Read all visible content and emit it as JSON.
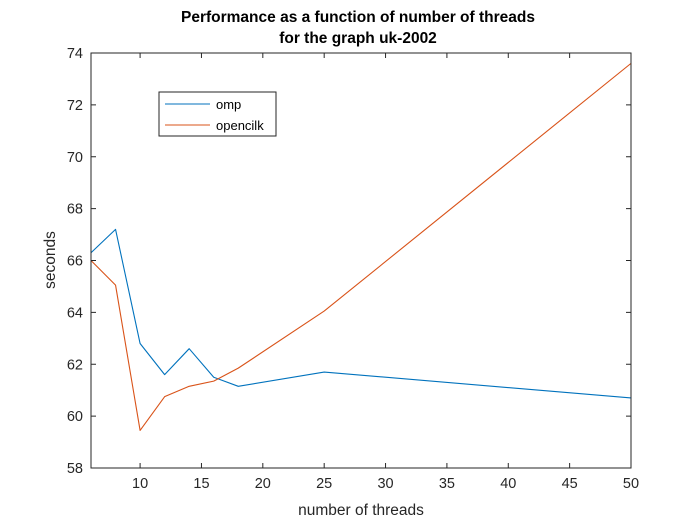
{
  "chart_data": {
    "type": "line",
    "title": [
      "Performance as a function of number of threads",
      "for the graph uk-2002"
    ],
    "xlabel": "number of threads",
    "ylabel": "seconds",
    "xlim": [
      6,
      50
    ],
    "ylim": [
      58,
      74
    ],
    "xticks": [
      10,
      15,
      20,
      25,
      30,
      35,
      40,
      45,
      50
    ],
    "yticks": [
      58,
      60,
      62,
      64,
      66,
      68,
      70,
      72,
      74
    ],
    "grid": false,
    "legend_position": "top-left",
    "series": [
      {
        "name": "omp",
        "color": "#0072BD",
        "x": [
          6,
          8,
          10,
          12,
          14,
          16,
          18,
          25,
          50
        ],
        "y": [
          66.3,
          67.2,
          62.8,
          61.6,
          62.6,
          61.5,
          61.15,
          61.7,
          60.7
        ]
      },
      {
        "name": "opencilk",
        "color": "#D95319",
        "x": [
          6,
          8,
          10,
          12,
          14,
          16,
          18,
          25,
          50
        ],
        "y": [
          66.0,
          65.05,
          59.45,
          60.75,
          61.15,
          61.35,
          61.85,
          64.05,
          73.6
        ]
      }
    ]
  }
}
